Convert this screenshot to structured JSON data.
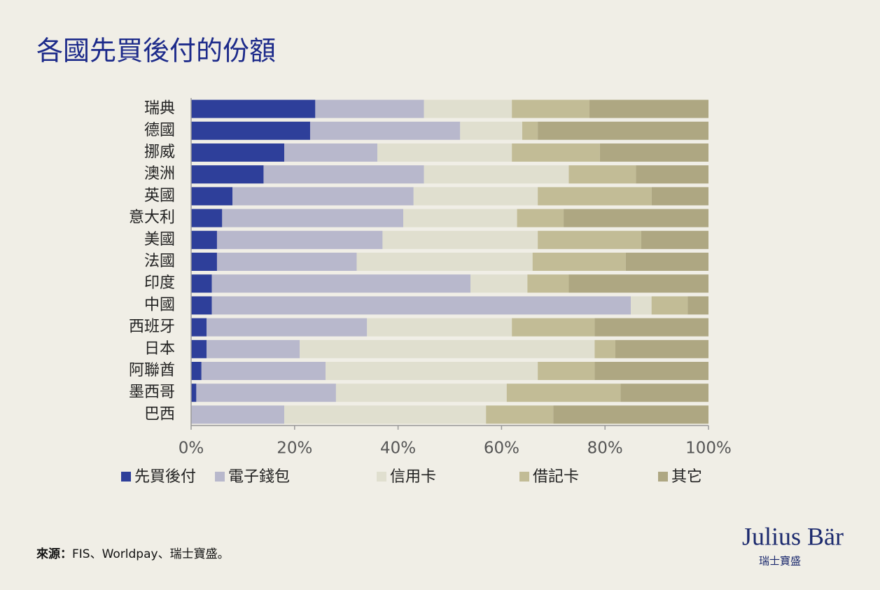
{
  "chart_data": {
    "type": "stacked-bar-horizontal",
    "title": "各國先買後付的份額",
    "categories": [
      "瑞典",
      "德國",
      "挪威",
      "澳洲",
      "英國",
      "意大利",
      "美國",
      "法國",
      "印度",
      "中國",
      "西班牙",
      "日本",
      "阿聯酋",
      "墨西哥",
      "巴西"
    ],
    "series": [
      {
        "name": "先買後付",
        "color": "#2e3f9a",
        "values": [
          24,
          23,
          18,
          14,
          8,
          6,
          5,
          5,
          4,
          4,
          3,
          3,
          2,
          1,
          0
        ]
      },
      {
        "name": "電子錢包",
        "color": "#b8b8cc",
        "values": [
          21,
          29,
          18,
          31,
          35,
          35,
          32,
          27,
          50,
          81,
          31,
          18,
          24,
          27,
          18
        ]
      },
      {
        "name": "信用卡",
        "color": "#e0dfcf",
        "values": [
          17,
          12,
          26,
          28,
          24,
          22,
          30,
          34,
          11,
          4,
          28,
          57,
          41,
          33,
          39
        ]
      },
      {
        "name": "借記卡",
        "color": "#c2bc96",
        "values": [
          15,
          3,
          17,
          13,
          22,
          9,
          20,
          18,
          8,
          7,
          16,
          4,
          11,
          22,
          13
        ]
      },
      {
        "name": "其它",
        "color": "#aea782",
        "values": [
          23,
          33,
          21,
          14,
          11,
          28,
          13,
          16,
          27,
          4,
          22,
          18,
          22,
          17,
          30
        ]
      }
    ],
    "xlim": [
      0,
      100
    ],
    "xticks": [
      {
        "value": 0,
        "label": "0%"
      },
      {
        "value": 20,
        "label": "20%"
      },
      {
        "value": 40,
        "label": "40%"
      },
      {
        "value": 60,
        "label": "60%"
      },
      {
        "value": 80,
        "label": "80%"
      },
      {
        "value": 100,
        "label": "100%"
      }
    ],
    "grid": false,
    "source_label": "來源：",
    "source_text": "FIS、Worldpay、瑞士寶盛。"
  },
  "logo": {
    "name": "Julius Bär",
    "subtitle": "瑞士寶盛"
  }
}
